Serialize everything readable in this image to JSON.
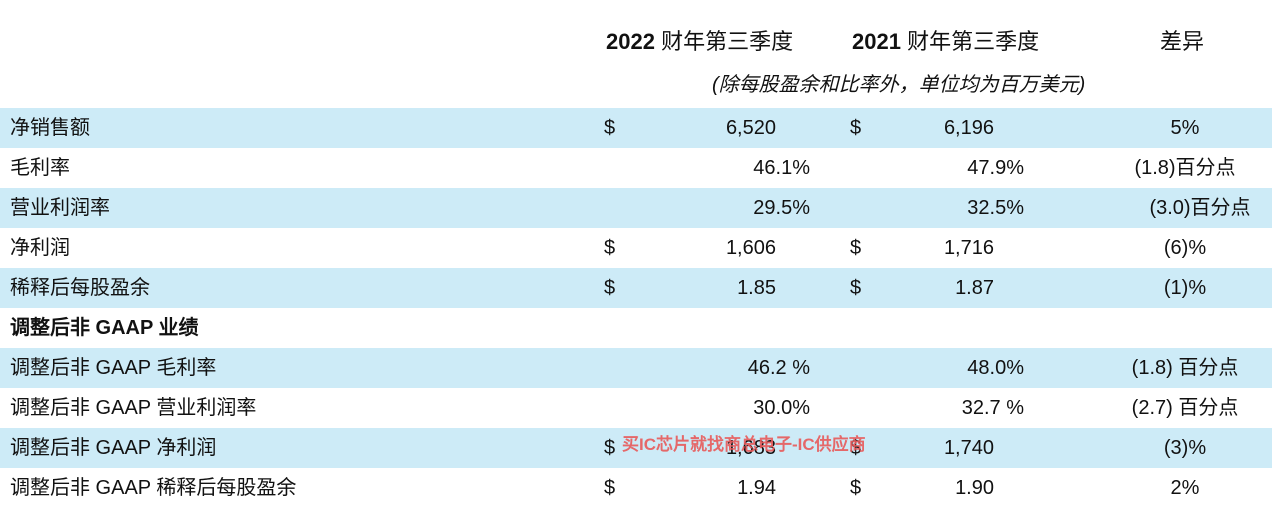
{
  "header": {
    "col1_year": "2022",
    "col1_label": "财年第三季度",
    "col2_year": "2021",
    "col2_label": "财年第三季度",
    "col3_label": "差异",
    "subtitle": "(除每股盈余和比率外，单位均为百万美元)"
  },
  "rows": [
    {
      "label": "净销售额",
      "cur1": "$",
      "val1": "6,520",
      "cur2": "$",
      "val2": "6,196",
      "diff": "5%"
    },
    {
      "label": "毛利率",
      "cur1": "",
      "val1": "46.1%",
      "cur2": "",
      "val2": "47.9%",
      "diff": "(1.8)百分点"
    },
    {
      "label": "营业利润率",
      "cur1": "",
      "val1": "29.5%",
      "cur2": "",
      "val2": "32.5%",
      "diff": "(3.0)百分点"
    },
    {
      "label": "净利润",
      "cur1": "$",
      "val1": "1,606",
      "cur2": "$",
      "val2": "1,716",
      "diff": "(6)%"
    },
    {
      "label": "稀释后每股盈余",
      "cur1": "$",
      "val1": "1.85",
      "cur2": "$",
      "val2": "1.87",
      "diff": "(1)%"
    },
    {
      "label": "调整后非 GAAP 业绩",
      "cur1": "",
      "val1": "",
      "cur2": "",
      "val2": "",
      "diff": ""
    },
    {
      "label": "调整后非 GAAP 毛利率",
      "cur1": "",
      "val1": "46.2 %",
      "cur2": "",
      "val2": "48.0%",
      "diff": "(1.8) 百分点"
    },
    {
      "label": "调整后非 GAAP 营业利润率",
      "cur1": "",
      "val1": "30.0%",
      "cur2": "",
      "val2": "32.7 %",
      "diff": "(2.7) 百分点"
    },
    {
      "label": "调整后非 GAAP 净利润",
      "cur1": "$",
      "val1": "1,683",
      "cur2": "$",
      "val2": "1,740",
      "diff": "(3)%"
    },
    {
      "label": "调整后非 GAAP 稀释后每股盈余",
      "cur1": "$",
      "val1": "1.94",
      "cur2": "$",
      "val2": "1.90",
      "diff": "2%"
    }
  ],
  "watermark": "买IC芯片就找商总电子-IC供应商",
  "colors": {
    "row_shade": "#cdebf7",
    "watermark": "#e85a5a"
  }
}
